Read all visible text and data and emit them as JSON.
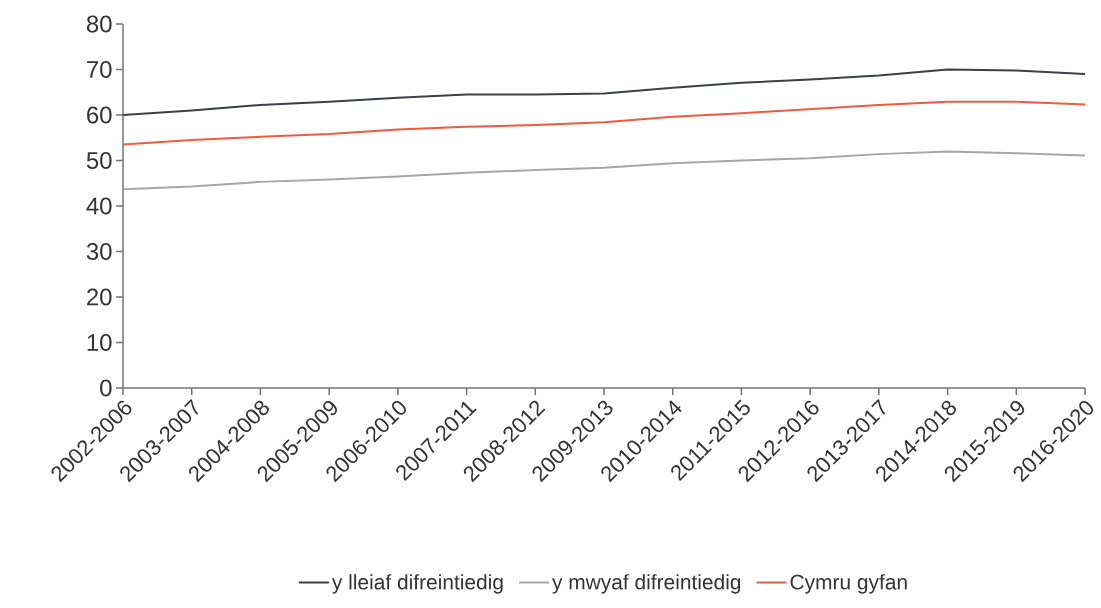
{
  "chart_data": {
    "type": "line",
    "categories": [
      "2002-2006",
      "2003-2007",
      "2004-2008",
      "2005-2009",
      "2006-2010",
      "2007-2011",
      "2008-2012",
      "2009-2013",
      "2010-2014",
      "2011-2015",
      "2012-2016",
      "2013-2017",
      "2014-2018",
      "2015-2019",
      "2016-2020"
    ],
    "series": [
      {
        "name": "y lleiaf difreintiedig",
        "color": "#3d4045",
        "values": [
          60.0,
          61.0,
          62.2,
          62.9,
          63.8,
          64.5,
          64.5,
          64.7,
          66.0,
          67.1,
          67.8,
          68.7,
          70.0,
          69.8,
          69.0
        ]
      },
      {
        "name": "y mwyaf difreintiedig",
        "color": "#a6a6a6",
        "values": [
          43.7,
          44.3,
          45.3,
          45.8,
          46.5,
          47.3,
          47.9,
          48.4,
          49.4,
          50.0,
          50.5,
          51.4,
          52.0,
          51.6,
          51.1
        ]
      },
      {
        "name": "Cymru gyfan",
        "color": "#f15a3d",
        "values": [
          53.5,
          54.5,
          55.2,
          55.8,
          56.8,
          57.4,
          57.8,
          58.4,
          59.6,
          60.4,
          61.3,
          62.2,
          62.9,
          62.9,
          62.3
        ]
      }
    ],
    "ylim": [
      0,
      80
    ],
    "yticks": [
      0,
      10,
      20,
      30,
      40,
      50,
      60,
      70,
      80
    ],
    "legend": "bottom",
    "grid": false,
    "marker": "none",
    "line_style": "solid"
  }
}
